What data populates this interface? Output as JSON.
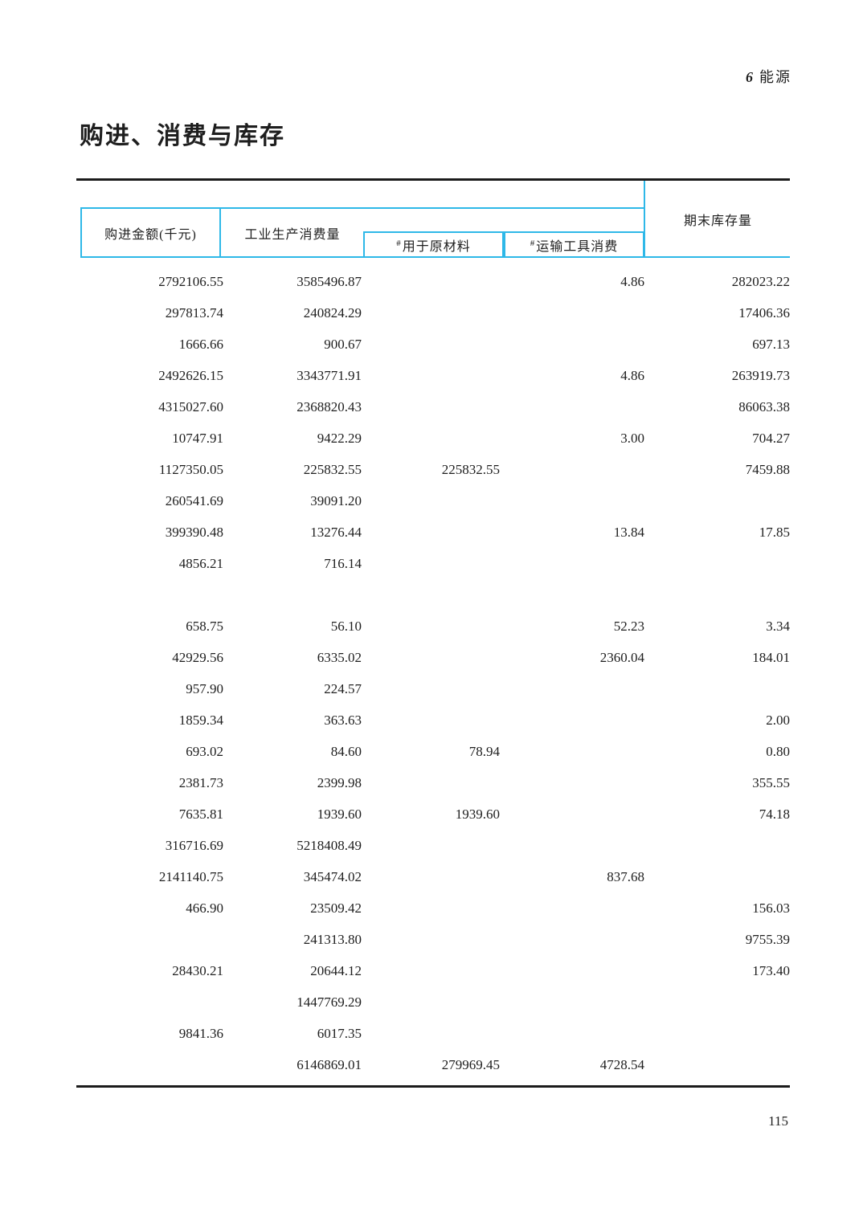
{
  "page": {
    "chapter_number": "6",
    "chapter_label": "能源",
    "title": "购进、消费与库存",
    "page_number": "115"
  },
  "colors": {
    "accent": "#2eb8e8"
  },
  "table": {
    "header": {
      "col_purchase": "购进金额(千元)",
      "col_consumption": "工业生产消费量",
      "hash_prefix": "#",
      "sub_raw_material": "用于原材料",
      "sub_transport": "运输工具消费",
      "col_stock": "期末库存量"
    },
    "columns": [
      "购进金额(千元)",
      "工业生产消费量",
      "#用于原材料",
      "#运输工具消费",
      "期末库存量"
    ],
    "rows": [
      [
        "2792106.55",
        "3585496.87",
        "",
        "4.86",
        "282023.22"
      ],
      [
        "297813.74",
        "240824.29",
        "",
        "",
        "17406.36"
      ],
      [
        "1666.66",
        "900.67",
        "",
        "",
        "697.13"
      ],
      [
        "2492626.15",
        "3343771.91",
        "",
        "4.86",
        "263919.73"
      ],
      [
        "4315027.60",
        "2368820.43",
        "",
        "",
        "86063.38"
      ],
      [
        "10747.91",
        "9422.29",
        "",
        "3.00",
        "704.27"
      ],
      [
        "1127350.05",
        "225832.55",
        "225832.55",
        "",
        "7459.88"
      ],
      [
        "260541.69",
        "39091.20",
        "",
        "",
        ""
      ],
      [
        "399390.48",
        "13276.44",
        "",
        "13.84",
        "17.85"
      ],
      [
        "4856.21",
        "716.14",
        "",
        "",
        ""
      ],
      [
        "",
        "",
        "",
        "",
        ""
      ],
      [
        "658.75",
        "56.10",
        "",
        "52.23",
        "3.34"
      ],
      [
        "42929.56",
        "6335.02",
        "",
        "2360.04",
        "184.01"
      ],
      [
        "957.90",
        "224.57",
        "",
        "",
        ""
      ],
      [
        "1859.34",
        "363.63",
        "",
        "",
        "2.00"
      ],
      [
        "693.02",
        "84.60",
        "78.94",
        "",
        "0.80"
      ],
      [
        "2381.73",
        "2399.98",
        "",
        "",
        "355.55"
      ],
      [
        "7635.81",
        "1939.60",
        "1939.60",
        "",
        "74.18"
      ],
      [
        "316716.69",
        "5218408.49",
        "",
        "",
        ""
      ],
      [
        "2141140.75",
        "345474.02",
        "",
        "837.68",
        ""
      ],
      [
        "466.90",
        "23509.42",
        "",
        "",
        "156.03"
      ],
      [
        "",
        "241313.80",
        "",
        "",
        "9755.39"
      ],
      [
        "28430.21",
        "20644.12",
        "",
        "",
        "173.40"
      ],
      [
        "",
        "1447769.29",
        "",
        "",
        ""
      ],
      [
        "9841.36",
        "6017.35",
        "",
        "",
        ""
      ],
      [
        "",
        "6146869.01",
        "279969.45",
        "4728.54",
        ""
      ]
    ]
  }
}
